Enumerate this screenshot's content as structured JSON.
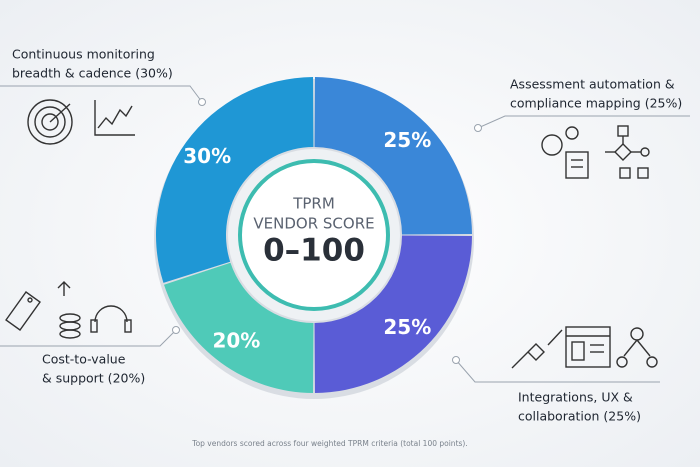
{
  "chart_data": {
    "type": "donut",
    "center_text": [
      "TPRM",
      "VENDOR SCORE"
    ],
    "center_value": "0–100",
    "categories": [
      [
        "Assessment automation &",
        "compliance mapping (25%)"
      ],
      [
        "Integrations, UX &",
        "collaboration (25%)"
      ],
      [
        "Cost-to-value",
        "& support (20%)"
      ],
      [
        "Continuous monitoring",
        "breadth & cadence (30%)"
      ]
    ],
    "values": [
      25,
      25,
      20,
      30
    ],
    "value_labels": [
      "25%",
      "25%",
      "20%",
      "30%"
    ],
    "colors": [
      "#3a87d8",
      "#5a5cd6",
      "#4fcab8",
      "#1f97d5"
    ],
    "footnote": "Top vendors scored across four weighted TPRM criteria (total 100 points)."
  }
}
